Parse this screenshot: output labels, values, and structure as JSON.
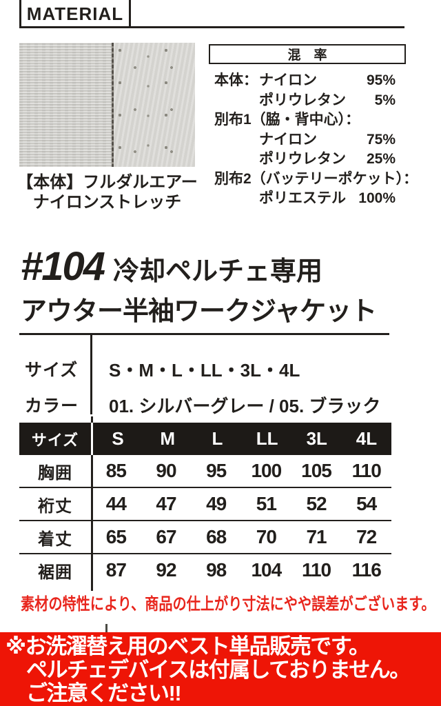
{
  "header": {
    "title": "MATERIAL"
  },
  "swatch": {
    "caption_line1": "【本体】フルダルエアー",
    "caption_line2": "ナイロンストレッチ"
  },
  "mix": {
    "title": "混　率",
    "rows": [
      {
        "prefix": "本体：",
        "name": "ナイロン",
        "value": "95%"
      },
      {
        "prefix": "",
        "name": "ポリウレタン",
        "value": "5%"
      },
      {
        "full": "別布1（脇・背中心）："
      },
      {
        "prefix": "",
        "name": "ナイロン",
        "value": "75%"
      },
      {
        "prefix": "",
        "name": "ポリウレタン",
        "value": "25%"
      },
      {
        "full": "別布2（バッテリーポケット）："
      },
      {
        "prefix": "",
        "name": "ポリエステル",
        "value": "100%"
      }
    ]
  },
  "product": {
    "number": "#104",
    "title_line1": "冷却ペルチェ専用",
    "title_line2": "アウター半袖ワークジャケット"
  },
  "spec": {
    "size_label": "サイズ",
    "size_value": "S・M・L・LL・3L・4L",
    "color_label": "カラー",
    "color_value": "01. シルバーグレー / 05. ブラック"
  },
  "size_table": {
    "header": [
      "サイズ",
      "S",
      "M",
      "L",
      "LL",
      "3L",
      "4L"
    ],
    "rows": [
      {
        "label": "胸囲",
        "values": [
          "85",
          "90",
          "95",
          "100",
          "105",
          "110"
        ]
      },
      {
        "label": "裄丈",
        "values": [
          "44",
          "47",
          "49",
          "51",
          "52",
          "54"
        ]
      },
      {
        "label": "着丈",
        "values": [
          "65",
          "67",
          "68",
          "70",
          "71",
          "72"
        ]
      },
      {
        "label": "裾囲",
        "values": [
          "87",
          "92",
          "98",
          "104",
          "110",
          "116"
        ]
      }
    ]
  },
  "note": {
    "text": "素材の特性により、商品の仕上がり寸法にやや誤差がございます。"
  },
  "banner": {
    "line1": "※お洗濯替え用のベスト単品販売です。",
    "line2": "ペルチェデバイスは付属しておりません。",
    "line3": "ご注意ください!!"
  },
  "colors": {
    "ink": "#221f1c",
    "table_header_bg": "#1d1a17",
    "note_red": "#e8251c",
    "banner_bg": "#ee1506",
    "banner_text": "#ffffff",
    "swatch_gray": "#d6d5d1"
  }
}
